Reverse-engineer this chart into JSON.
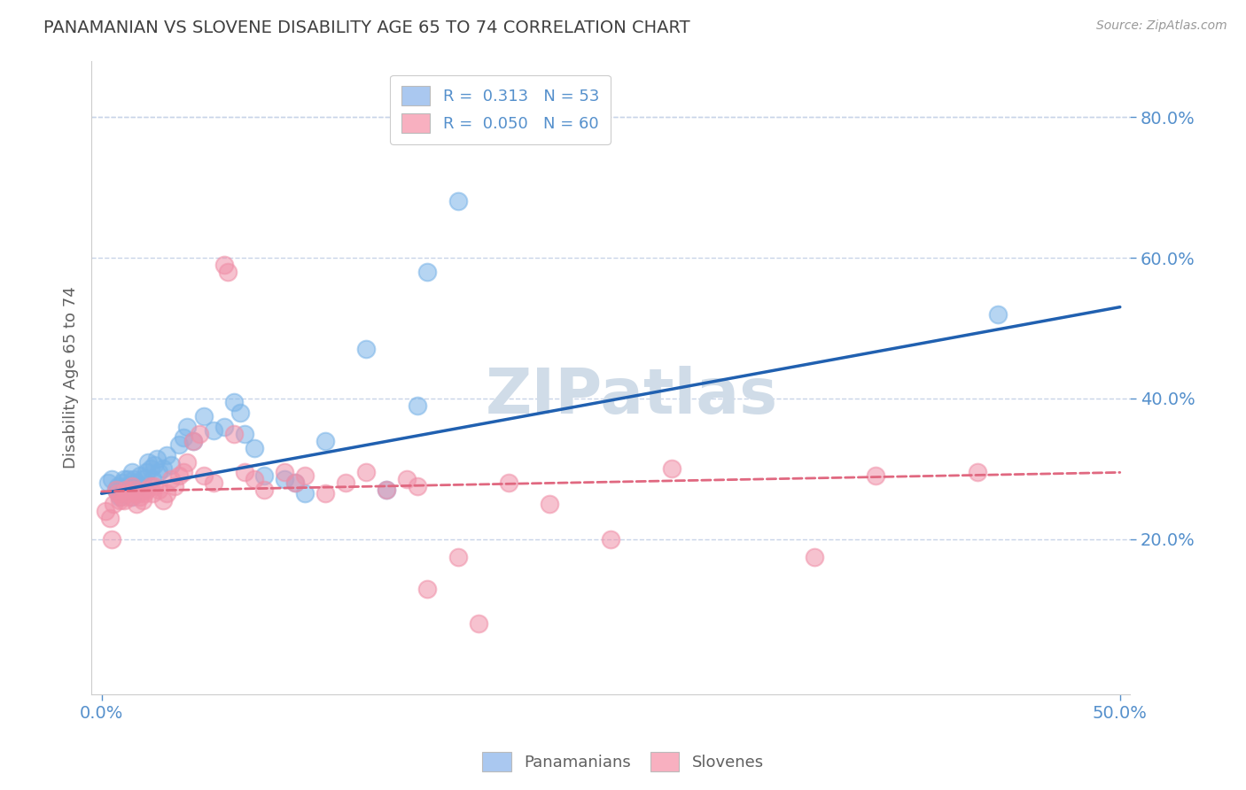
{
  "title": "PANAMANIAN VS SLOVENE DISABILITY AGE 65 TO 74 CORRELATION CHART",
  "source_text": "Source: ZipAtlas.com",
  "ylabel": "Disability Age 65 to 74",
  "xlim": [
    -0.005,
    0.505
  ],
  "ylim": [
    -0.02,
    0.88
  ],
  "ytick_values": [
    0.2,
    0.4,
    0.6,
    0.8
  ],
  "xtick_values": [
    0.0,
    0.5
  ],
  "blue_scatter_x": [
    0.003,
    0.005,
    0.007,
    0.008,
    0.009,
    0.01,
    0.01,
    0.011,
    0.012,
    0.013,
    0.013,
    0.014,
    0.015,
    0.015,
    0.015,
    0.016,
    0.017,
    0.018,
    0.019,
    0.02,
    0.02,
    0.022,
    0.023,
    0.024,
    0.025,
    0.026,
    0.027,
    0.028,
    0.03,
    0.032,
    0.034,
    0.038,
    0.04,
    0.042,
    0.045,
    0.05,
    0.055,
    0.06,
    0.065,
    0.068,
    0.07,
    0.075,
    0.08,
    0.09,
    0.095,
    0.1,
    0.11,
    0.13,
    0.14,
    0.155,
    0.16,
    0.175,
    0.44
  ],
  "blue_scatter_y": [
    0.28,
    0.285,
    0.27,
    0.275,
    0.26,
    0.265,
    0.28,
    0.285,
    0.275,
    0.27,
    0.285,
    0.275,
    0.26,
    0.275,
    0.295,
    0.285,
    0.28,
    0.275,
    0.29,
    0.27,
    0.285,
    0.295,
    0.31,
    0.3,
    0.285,
    0.305,
    0.315,
    0.295,
    0.3,
    0.32,
    0.305,
    0.335,
    0.345,
    0.36,
    0.34,
    0.375,
    0.355,
    0.36,
    0.395,
    0.38,
    0.35,
    0.33,
    0.29,
    0.285,
    0.28,
    0.265,
    0.34,
    0.47,
    0.27,
    0.39,
    0.58,
    0.68,
    0.52
  ],
  "pink_scatter_x": [
    0.002,
    0.004,
    0.005,
    0.006,
    0.007,
    0.008,
    0.009,
    0.01,
    0.011,
    0.012,
    0.013,
    0.014,
    0.015,
    0.016,
    0.017,
    0.018,
    0.019,
    0.02,
    0.021,
    0.022,
    0.024,
    0.025,
    0.026,
    0.028,
    0.03,
    0.032,
    0.034,
    0.036,
    0.038,
    0.04,
    0.042,
    0.045,
    0.048,
    0.05,
    0.055,
    0.06,
    0.062,
    0.065,
    0.07,
    0.075,
    0.08,
    0.09,
    0.095,
    0.1,
    0.11,
    0.12,
    0.13,
    0.14,
    0.15,
    0.155,
    0.16,
    0.175,
    0.185,
    0.2,
    0.22,
    0.25,
    0.28,
    0.35,
    0.38,
    0.43
  ],
  "pink_scatter_y": [
    0.24,
    0.23,
    0.2,
    0.25,
    0.27,
    0.265,
    0.255,
    0.26,
    0.255,
    0.27,
    0.265,
    0.26,
    0.275,
    0.27,
    0.25,
    0.265,
    0.26,
    0.255,
    0.265,
    0.27,
    0.275,
    0.265,
    0.275,
    0.27,
    0.255,
    0.265,
    0.285,
    0.275,
    0.29,
    0.295,
    0.31,
    0.34,
    0.35,
    0.29,
    0.28,
    0.59,
    0.58,
    0.35,
    0.295,
    0.285,
    0.27,
    0.295,
    0.28,
    0.29,
    0.265,
    0.28,
    0.295,
    0.27,
    0.285,
    0.275,
    0.13,
    0.175,
    0.08,
    0.28,
    0.25,
    0.2,
    0.3,
    0.175,
    0.29,
    0.295
  ],
  "blue_line_x": [
    0.0,
    0.5
  ],
  "blue_line_y": [
    0.265,
    0.53
  ],
  "pink_line_x": [
    0.0,
    0.5
  ],
  "pink_line_y": [
    0.268,
    0.295
  ],
  "scatter_color_blue": "#7ab4e8",
  "scatter_color_pink": "#f090a8",
  "line_color_blue": "#2060b0",
  "line_color_pink": "#e06880",
  "legend_box_blue": "#aac8f0",
  "legend_box_pink": "#f8b0c0",
  "background_color": "#ffffff",
  "grid_color": "#c8d4e8",
  "title_color": "#404040",
  "source_color": "#999999",
  "ylabel_color": "#606060",
  "tick_color": "#5590cc",
  "watermark_color": "#d0dce8"
}
